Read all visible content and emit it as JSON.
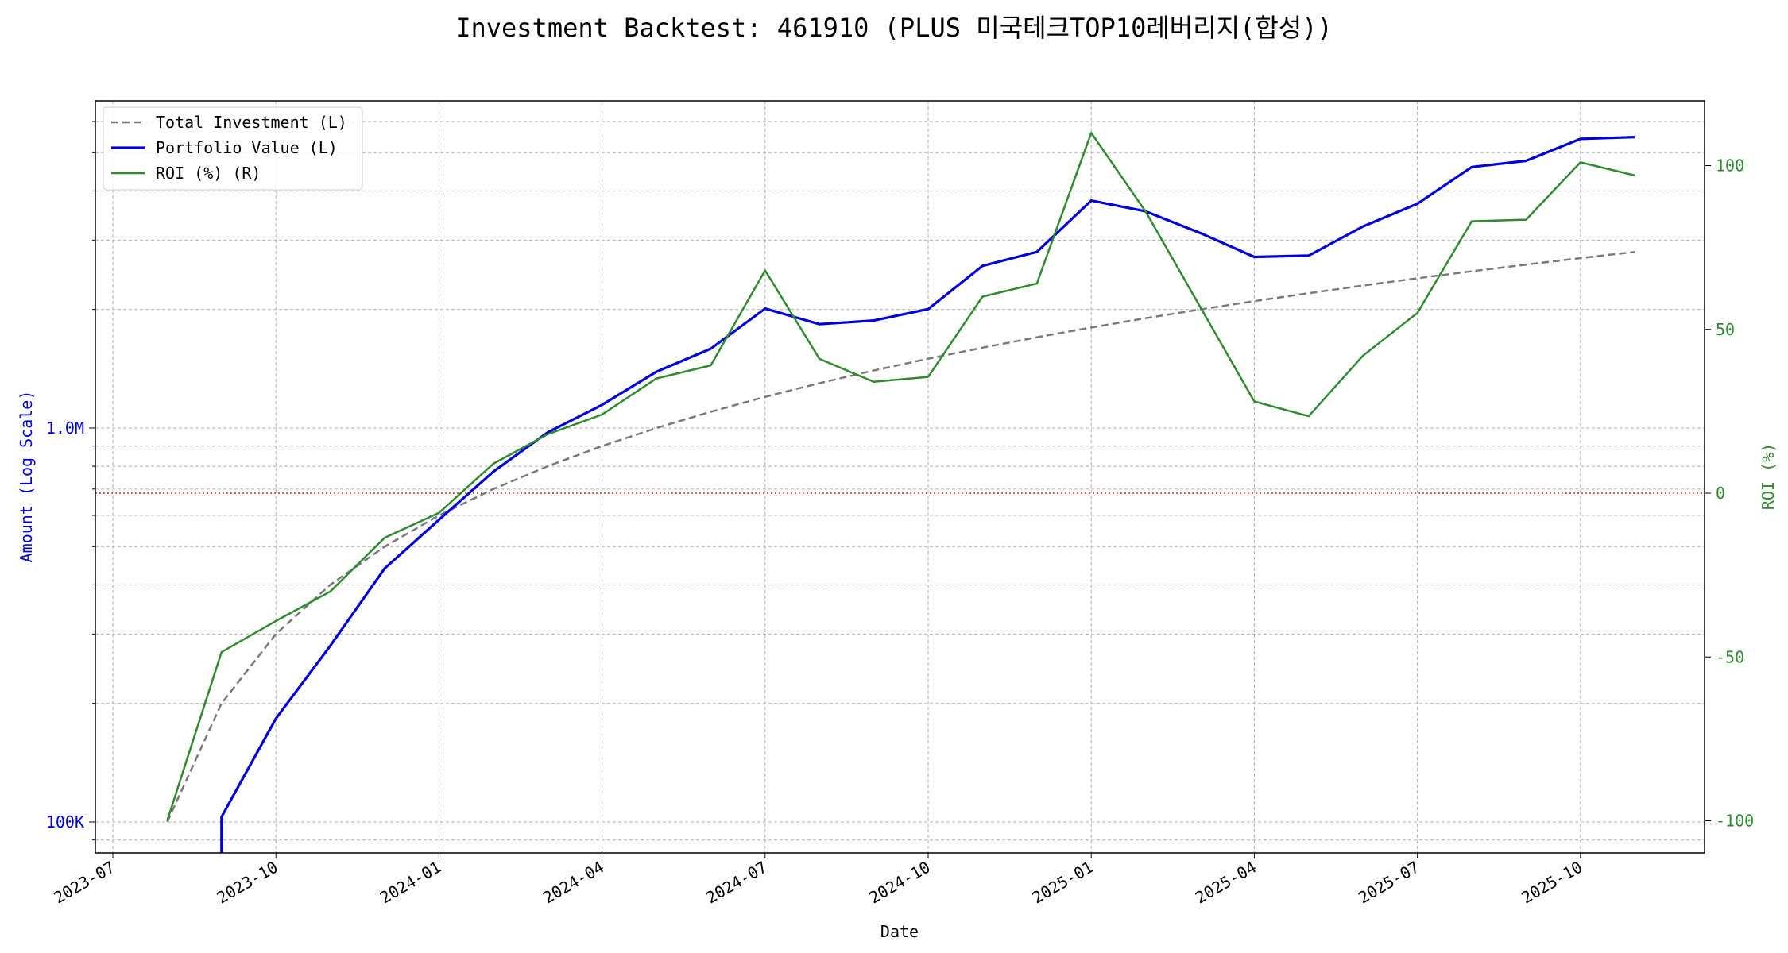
{
  "chart_data": {
    "type": "line",
    "title": "Investment Backtest: 461910 (PLUS 미국테크TOP10레버리지(합성))",
    "xlabel": "Date",
    "ylabel_left": "Amount (Log Scale)",
    "ylabel_right": "ROI (%)",
    "left_scale": "log",
    "left_ticks": [
      {
        "value": 100000,
        "label": "100K"
      },
      {
        "value": 1000000,
        "label": "1.0M"
      }
    ],
    "right_ticks": [
      {
        "value": -100,
        "label": "-100"
      },
      {
        "value": -50,
        "label": "-50"
      },
      {
        "value": 0,
        "label": "0"
      },
      {
        "value": 50,
        "label": "50"
      },
      {
        "value": 100,
        "label": "100"
      }
    ],
    "x_ticks": [
      "2023-07",
      "2023-10",
      "2024-01",
      "2024-04",
      "2024-07",
      "2024-10",
      "2025-01",
      "2025-04",
      "2025-07",
      "2025-10"
    ],
    "x": [
      "2023-08",
      "2023-09",
      "2023-10",
      "2023-11",
      "2023-12",
      "2024-01",
      "2024-02",
      "2024-03",
      "2024-04",
      "2024-05",
      "2024-06",
      "2024-07",
      "2024-08",
      "2024-09",
      "2024-10",
      "2024-11",
      "2024-12",
      "2025-01",
      "2025-02",
      "2025-03",
      "2025-04",
      "2025-05",
      "2025-06",
      "2025-07",
      "2025-08",
      "2025-09",
      "2025-10",
      "2025-11"
    ],
    "series": [
      {
        "name": "Total Investment (L)",
        "axis": "left",
        "color": "#7a7a7a",
        "style": "dashed",
        "values": [
          100000,
          200000,
          300000,
          400000,
          500000,
          600000,
          700000,
          800000,
          900000,
          1000000,
          1100000,
          1200000,
          1300000,
          1400000,
          1500000,
          1600000,
          1700000,
          1800000,
          1900000,
          2000000,
          2100000,
          2200000,
          2300000,
          2400000,
          2500000,
          2600000,
          2700000,
          2800000
        ]
      },
      {
        "name": "Portfolio Value (L)",
        "axis": "left",
        "color": "#0000dd",
        "style": "solid",
        "values": [
          null,
          103000,
          183000,
          280000,
          440000,
          585000,
          775000,
          975000,
          1145000,
          1390000,
          1590000,
          2010000,
          1835000,
          1875000,
          2005000,
          2580000,
          2800000,
          3780000,
          3550000,
          3130000,
          2720000,
          2740000,
          3250000,
          3710000,
          4600000,
          4770000,
          5420000,
          5480000
        ]
      },
      {
        "name": "ROI (%) (R)",
        "axis": "right",
        "color": "#2e8b2e",
        "style": "solid",
        "values": [
          -100,
          -48.5,
          -39,
          -30,
          -13.6,
          -6,
          9,
          18,
          24,
          35,
          39,
          68,
          41,
          34,
          35.5,
          60,
          64,
          110,
          86,
          57,
          28,
          23.5,
          42,
          55,
          83,
          83.5,
          101,
          97
        ]
      }
    ],
    "reference_line": {
      "axis": "right",
      "value": 0,
      "color": "#dd2222",
      "style": "dotted"
    },
    "legend_position": "upper-left",
    "grid": true
  }
}
